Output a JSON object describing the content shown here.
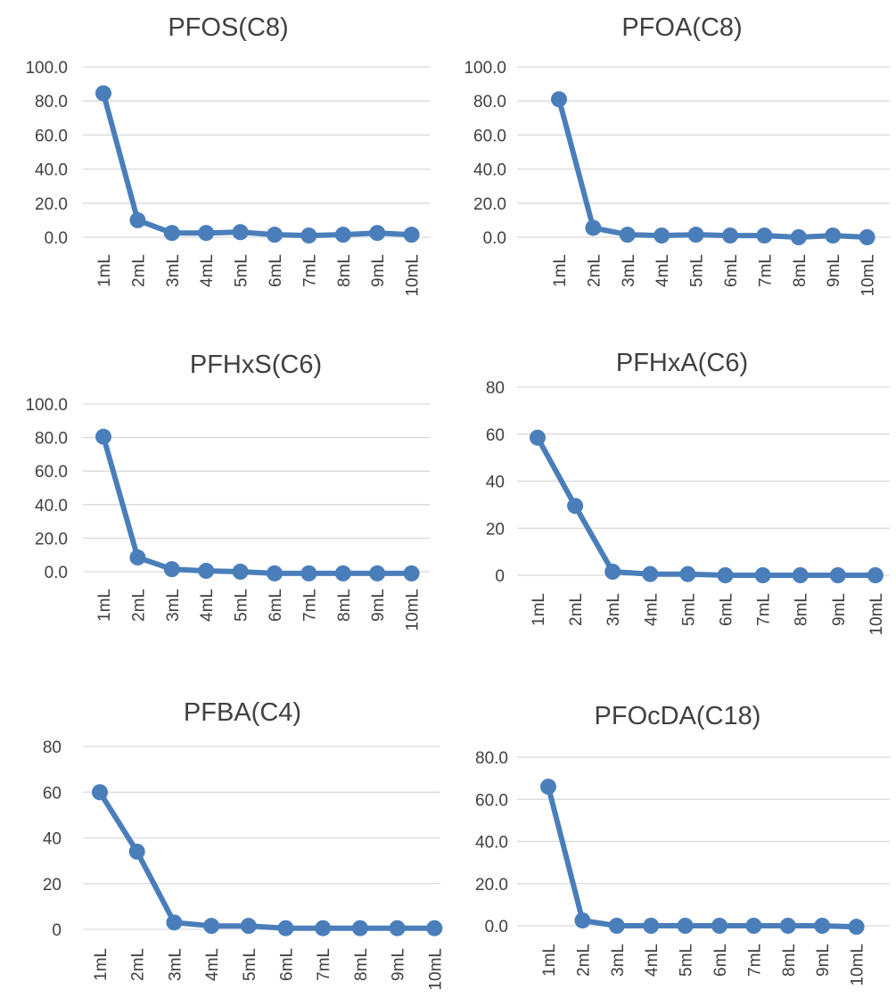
{
  "colors": {
    "series": "#4a7ebb",
    "grid": "#d9d9d9",
    "text": "#404040"
  },
  "chart_data": [
    {
      "type": "line",
      "title": "PFOS(C8)",
      "categories": [
        "1mL",
        "2mL",
        "3mL",
        "4mL",
        "5mL",
        "6mL",
        "7mL",
        "8mL",
        "9mL",
        "10mL"
      ],
      "values": [
        84.5,
        10.0,
        2.5,
        2.5,
        3.0,
        1.5,
        1.0,
        1.5,
        2.5,
        1.5
      ],
      "yticks": [
        "0.0",
        "20.0",
        "40.0",
        "60.0",
        "80.0",
        "100.0"
      ],
      "ylim": [
        0,
        100
      ],
      "grid": true
    },
    {
      "type": "line",
      "title": "PFOA(C8)",
      "categories": [
        "1mL",
        "2mL",
        "3mL",
        "4mL",
        "5mL",
        "6mL",
        "7mL",
        "8mL",
        "9mL",
        "10mL"
      ],
      "values": [
        81.0,
        5.5,
        1.5,
        1.0,
        1.5,
        1.0,
        1.0,
        0.0,
        1.0,
        0.0
      ],
      "yticks": [
        "0.0",
        "20.0",
        "40.0",
        "60.0",
        "80.0",
        "100.0"
      ],
      "ylim": [
        0,
        100
      ],
      "grid": true
    },
    {
      "type": "line",
      "title": "PFHxS(C6)",
      "categories": [
        "1mL",
        "2mL",
        "3mL",
        "4mL",
        "5mL",
        "6mL",
        "7mL",
        "8mL",
        "9mL",
        "10mL"
      ],
      "values": [
        80.5,
        8.5,
        1.5,
        0.5,
        0.0,
        -1.0,
        -1.0,
        -1.0,
        -1.0,
        -1.0
      ],
      "yticks": [
        "0.0",
        "20.0",
        "40.0",
        "60.0",
        "80.0",
        "100.0"
      ],
      "ylim": [
        0,
        100
      ],
      "grid": true
    },
    {
      "type": "line",
      "title": "PFHxA(C6)",
      "categories": [
        "1mL",
        "2mL",
        "3mL",
        "4mL",
        "5mL",
        "6mL",
        "7mL",
        "8mL",
        "9mL",
        "10mL"
      ],
      "values": [
        58.5,
        29.5,
        1.5,
        0.5,
        0.5,
        0.0,
        0.0,
        0.0,
        0.0,
        0.0
      ],
      "yticks": [
        "0",
        "20",
        "40",
        "60",
        "80"
      ],
      "ylim": [
        0,
        80
      ],
      "grid": true
    },
    {
      "type": "line",
      "title": "PFBA(C4)",
      "categories": [
        "1mL",
        "2mL",
        "3mL",
        "4mL",
        "5mL",
        "6mL",
        "7mL",
        "8mL",
        "9mL",
        "10mL"
      ],
      "values": [
        60.0,
        34.0,
        3.0,
        1.5,
        1.5,
        0.5,
        0.5,
        0.5,
        0.5,
        0.5
      ],
      "yticks": [
        "0",
        "20",
        "40",
        "60",
        "80"
      ],
      "ylim": [
        0,
        80
      ],
      "grid": true
    },
    {
      "type": "line",
      "title": "PFOcDA(C18)",
      "categories": [
        "1mL",
        "2mL",
        "3mL",
        "4mL",
        "5mL",
        "6mL",
        "7mL",
        "8mL",
        "9mL",
        "10mL"
      ],
      "values": [
        66.0,
        2.5,
        0.0,
        0.0,
        0.0,
        0.0,
        0.0,
        0.0,
        0.0,
        -0.5
      ],
      "yticks": [
        "0.0",
        "20.0",
        "40.0",
        "60.0",
        "80.0"
      ],
      "ylim": [
        0,
        80
      ],
      "grid": true
    }
  ]
}
